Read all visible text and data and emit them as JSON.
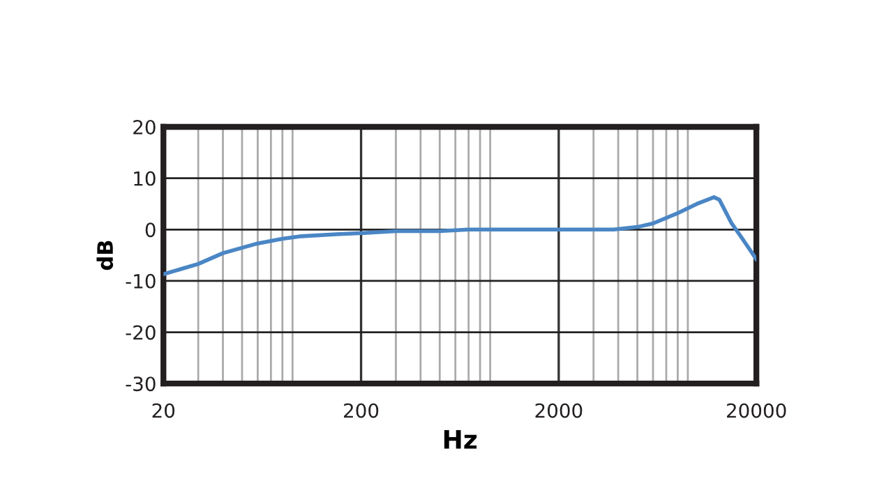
{
  "chart_data": {
    "type": "line",
    "xlabel": "Hz",
    "ylabel": "dB",
    "log": "x",
    "x": [
      20,
      30,
      40,
      60,
      80,
      100,
      150,
      200,
      300,
      500,
      700,
      1000,
      2000,
      3000,
      3800,
      5000,
      6000,
      8000,
      10000,
      12200,
      13000,
      15000,
      17000,
      20000
    ],
    "series": [
      {
        "color": "#4a86c5",
        "values": [
          -8.7,
          -6.7,
          -4.6,
          -2.7,
          -1.8,
          -1.3,
          -0.9,
          -0.7,
          -0.3,
          -0.3,
          0,
          0,
          0,
          0,
          0,
          0.5,
          1.2,
          3.2,
          5,
          6.3,
          5.8,
          1.2,
          -1.8,
          -5.8
        ]
      }
    ],
    "xlim": [
      20,
      20000
    ],
    "ylim": [
      -30,
      20
    ],
    "xticks": [
      20,
      200,
      2000,
      20000
    ],
    "yticks": [
      -30,
      -20,
      -10,
      0,
      10,
      20
    ],
    "grid": true,
    "legend": false,
    "marker": "none",
    "line_style": "solid"
  }
}
